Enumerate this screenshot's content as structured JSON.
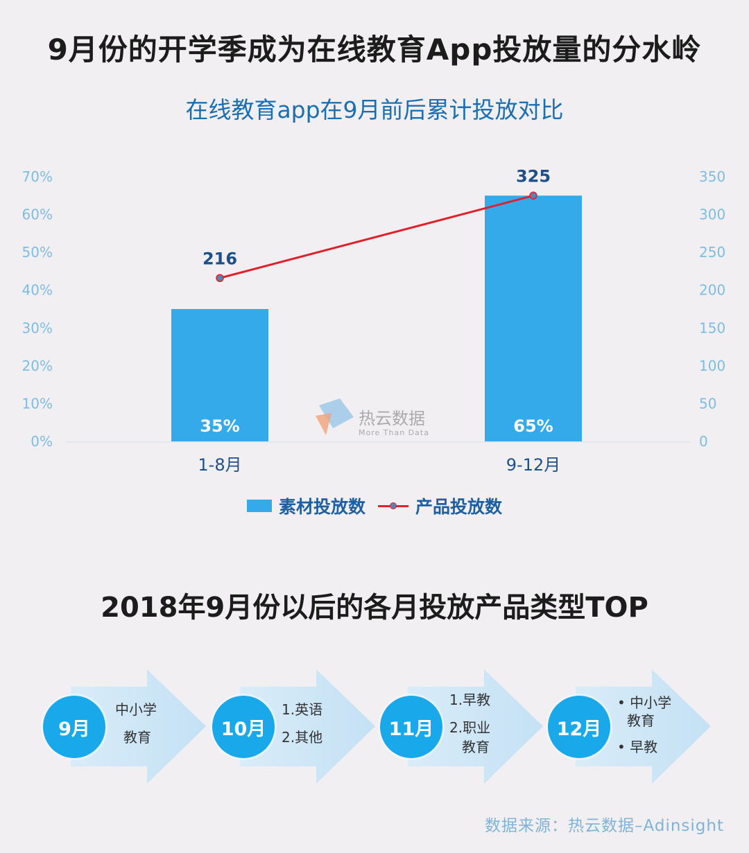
{
  "main_title": "9月份的开学季成为在线教育App投放量的分水岭",
  "chart_title": "在线教育app在9月前后累计投放对比",
  "chart_data": {
    "type": "bar",
    "title": "在线教育app在9月前后累计投放对比",
    "categories": [
      "1-8月",
      "9-12月"
    ],
    "series": [
      {
        "name": "素材投放数",
        "type": "bar",
        "axis": "left",
        "values": [
          35,
          65
        ],
        "labels": [
          "35%",
          "65%"
        ]
      },
      {
        "name": "产品投放数",
        "type": "line",
        "axis": "right",
        "values": [
          216,
          325
        ],
        "labels": [
          "216",
          "325"
        ]
      }
    ],
    "y_left": {
      "ylim": [
        0,
        70
      ],
      "ticks": [
        "0%",
        "10%",
        "20%",
        "30%",
        "40%",
        "50%",
        "60%",
        "70%"
      ]
    },
    "y_right": {
      "ylim": [
        0,
        350
      ],
      "ticks": [
        "0",
        "50",
        "100",
        "150",
        "200",
        "250",
        "300",
        "350"
      ]
    },
    "legend_position": "bottom",
    "colors": {
      "bar": "#34aaeb",
      "line": "#e0202a",
      "marker": "#5f7fb0",
      "axis_text": "#7cbde6"
    }
  },
  "watermark": {
    "name": "热云数据",
    "tagline": "More Than Data"
  },
  "section_title": "2018年9月份以后的各月投放产品类型TOP",
  "steps": [
    {
      "month": "9月",
      "lines": [
        "中小学",
        "教育"
      ]
    },
    {
      "month": "10月",
      "lines": [
        "1.英语",
        "2.其他"
      ]
    },
    {
      "month": "11月",
      "lines": [
        "1.早教",
        "2.职业",
        "教育"
      ]
    },
    {
      "month": "12月",
      "lines": [
        "• 中小学",
        "教育",
        "• 早教"
      ]
    }
  ],
  "source": "数据来源：热云数据–Adinsight"
}
